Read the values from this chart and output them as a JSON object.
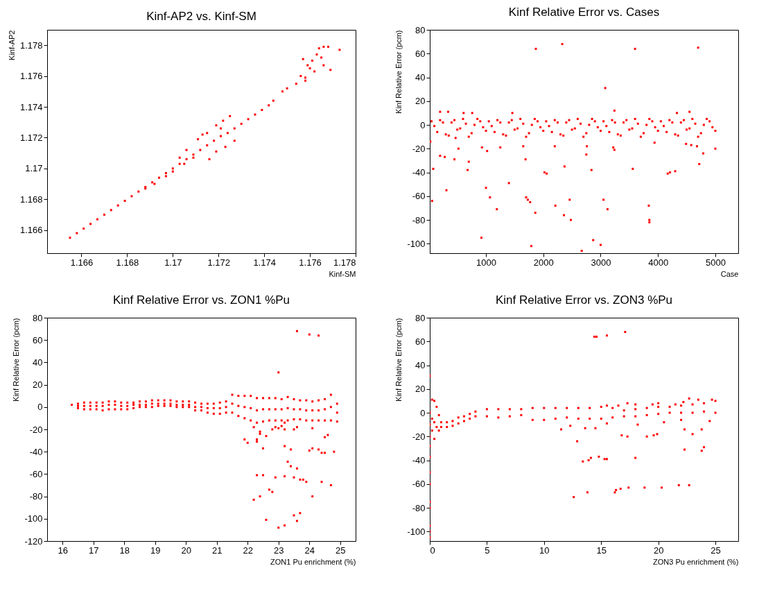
{
  "chart_data": [
    {
      "type": "scatter",
      "title": "Kinf-AP2 vs. Kinf-SM",
      "xlabel": "Kinf-SM",
      "ylabel": "Kinf-AP2",
      "marker": "square",
      "xlim": [
        1.1645,
        1.178
      ],
      "ylim": [
        1.1645,
        1.179
      ],
      "xticks": [
        1.166,
        1.168,
        1.17,
        1.172,
        1.174,
        1.176,
        1.178
      ],
      "yticks": [
        1.166,
        1.168,
        1.17,
        1.172,
        1.174,
        1.176,
        1.178
      ],
      "series": [
        {
          "color": "#ff0000",
          "x": [
            1.1655,
            1.1658,
            1.1661,
            1.1664,
            1.1667,
            1.167,
            1.1673,
            1.1676,
            1.1679,
            1.1682,
            1.1685,
            1.1688,
            1.1691,
            1.1694,
            1.1697,
            1.17,
            1.1703,
            1.1706,
            1.1709,
            1.1712,
            1.1715,
            1.1718,
            1.1721,
            1.1724,
            1.1727,
            1.173,
            1.1733,
            1.1736,
            1.1739,
            1.1742,
            1.1688,
            1.1692,
            1.1697,
            1.17,
            1.1705,
            1.1709,
            1.1711,
            1.1713,
            1.1715,
            1.1716,
            1.1719,
            1.1719,
            1.1721,
            1.1722,
            1.1723,
            1.1725,
            1.1727,
            1.1703,
            1.1706,
            1.1744,
            1.1748,
            1.175,
            1.1754,
            1.1756,
            1.1758,
            1.1759,
            1.1761,
            1.1763,
            1.176,
            1.1762,
            1.1764,
            1.1766,
            1.1768,
            1.1766,
            1.1769,
            1.1773,
            1.1757,
            1.1758,
            1.1765
          ],
          "values": [
            1.1655,
            1.1658,
            1.1661,
            1.1664,
            1.1667,
            1.167,
            1.1673,
            1.1676,
            1.1679,
            1.1682,
            1.1685,
            1.1688,
            1.1691,
            1.1694,
            1.1697,
            1.17,
            1.1703,
            1.1706,
            1.1709,
            1.1712,
            1.1715,
            1.1718,
            1.1721,
            1.1723,
            1.1726,
            1.1729,
            1.1732,
            1.1735,
            1.1738,
            1.1741,
            1.1687,
            1.169,
            1.1695,
            1.1698,
            1.1703,
            1.1707,
            1.1719,
            1.1722,
            1.1723,
            1.1706,
            1.1728,
            1.1711,
            1.1726,
            1.1731,
            1.1714,
            1.1734,
            1.1718,
            1.1707,
            1.1712,
            1.1744,
            1.175,
            1.1752,
            1.1755,
            1.176,
            1.1759,
            1.1767,
            1.177,
            1.1774,
            1.1765,
            1.1763,
            1.1778,
            1.1779,
            1.1779,
            1.1767,
            1.1764,
            1.1777,
            1.1771,
            1.1757,
            1.1772
          ]
        }
      ]
    },
    {
      "type": "scatter",
      "title": "Kinf Relative Error vs. Cases",
      "xlabel": "Case",
      "ylabel": "Kinf Relative Error (pcm)",
      "marker": "square",
      "xlim": [
        20,
        5400
      ],
      "ylim": [
        -108,
        80
      ],
      "xticks": [
        1000,
        2000,
        3000,
        4000,
        5000
      ],
      "yticks": [
        -100,
        -80,
        -60,
        -40,
        -20,
        0,
        20,
        40,
        60,
        80
      ],
      "series": [
        {
          "color": "#ff0000",
          "x": [
            50,
            150,
            250,
            350,
            450,
            550,
            650,
            750,
            850,
            950,
            1050,
            1150,
            1250,
            1350,
            1450,
            1550,
            1650,
            1750,
            1850,
            1950,
            2050,
            2150,
            2250,
            2350,
            2450,
            2550,
            2650,
            2750,
            2850,
            2950,
            3050,
            3150,
            3250,
            3350,
            3450,
            3550,
            3650,
            3750,
            3850,
            3950,
            4050,
            4150,
            4250,
            4350,
            4450,
            4550,
            4650,
            4750,
            4850,
            4950,
            100,
            200,
            300,
            400,
            500,
            600,
            700,
            800,
            900,
            1000,
            1100,
            1200,
            1300,
            1400,
            1500,
            1600,
            1700,
            1800,
            1900,
            2000,
            2100,
            2200,
            2300,
            2400,
            2500,
            2600,
            2700,
            2800,
            2900,
            3000,
            3100,
            3200,
            3300,
            3400,
            3500,
            3600,
            3700,
            3800,
            3900,
            4000,
            4100,
            4200,
            4300,
            4400,
            4500,
            4600,
            4700,
            4800,
            4900,
            5000,
            1870,
            2330,
            3600,
            4700,
            3080,
            30,
            80,
            60,
            200,
            280,
            310,
            450,
            520,
            680,
            700,
            930,
            920,
            1000,
            1020,
            1070,
            1190,
            1250,
            1400,
            1650,
            1690,
            1700,
            1730,
            1770,
            1790,
            1860,
            2020,
            2060,
            2200,
            2210,
            2360,
            2370,
            2460,
            2480,
            2670,
            2750,
            2760,
            2840,
            2870,
            3000,
            3050,
            3120,
            3220,
            3240,
            3560,
            3840,
            3850,
            3850,
            3940,
            4170,
            4210,
            4300,
            4490,
            4580,
            4680,
            4720,
            4790,
            5000,
            200,
            340,
            470,
            610,
            760,
            1460,
            3240,
            4330,
            4550
          ],
          "values": [
            3,
            -6,
            2,
            -9,
            4,
            -3,
            1,
            -7,
            5,
            -2,
            3,
            -6,
            2,
            -9,
            4,
            -3,
            1,
            -7,
            5,
            -2,
            3,
            -6,
            2,
            -9,
            4,
            -3,
            1,
            -7,
            5,
            -2,
            3,
            -6,
            2,
            -9,
            4,
            -3,
            1,
            -7,
            5,
            -2,
            3,
            -6,
            2,
            -9,
            4,
            -3,
            1,
            -7,
            5,
            -2,
            -1,
            4,
            -8,
            2,
            -4,
            5,
            -10,
            0,
            3,
            -5,
            -1,
            4,
            -8,
            2,
            -4,
            5,
            -10,
            0,
            3,
            -5,
            -1,
            4,
            -8,
            2,
            -4,
            5,
            -10,
            0,
            3,
            -5,
            -1,
            4,
            -8,
            2,
            -4,
            5,
            -10,
            0,
            3,
            -5,
            -1,
            4,
            -8,
            2,
            -4,
            5,
            -10,
            0,
            3,
            -5,
            64,
            68,
            64,
            65,
            31,
            -14,
            -37,
            -64,
            -26,
            -27,
            -55,
            -29,
            -20,
            -38,
            -31,
            -19,
            -95,
            -53,
            -22,
            -61,
            -71,
            -19,
            -49,
            -18,
            -29,
            -61,
            -63,
            -65,
            -102,
            -74,
            -40,
            -41,
            -18,
            -68,
            -76,
            -35,
            -63,
            -80,
            -106,
            -25,
            -18,
            -38,
            -97,
            -101,
            -63,
            -71,
            -19,
            -21,
            -37,
            -68,
            -80,
            -82,
            -15,
            -41,
            -40,
            -39,
            -16,
            -17,
            -18,
            -33,
            -24,
            -20,
            11,
            11,
            -11,
            10,
            10,
            10,
            12,
            10,
            11
          ]
        }
      ]
    },
    {
      "type": "scatter",
      "title": "Kinf Relative Error vs. ZON1 %Pu",
      "xlabel": "ZON1 Pu enrichment (%)",
      "ylabel": "Kinf Relative Error (pcm)",
      "marker": "square",
      "xlim": [
        15.5,
        25.5
      ],
      "ylim": [
        -120,
        80
      ],
      "xticks": [
        16,
        17,
        18,
        19,
        20,
        21,
        22,
        23,
        24,
        25
      ],
      "yticks": [
        -120,
        -100,
        -80,
        -60,
        -40,
        -20,
        0,
        20,
        40,
        60,
        80
      ],
      "series": [
        {
          "color": "#ff0000",
          "x": [
            16.3,
            16.5,
            16.5,
            16.5,
            16.7,
            16.7,
            16.7,
            16.9,
            16.9,
            16.9,
            17.1,
            17.1,
            17.1,
            17.3,
            17.3,
            17.3,
            17.5,
            17.5,
            17.5,
            17.7,
            17.7,
            17.7,
            17.9,
            17.9,
            17.9,
            18.1,
            18.1,
            18.1,
            18.3,
            18.3,
            18.3,
            18.5,
            18.5,
            18.5,
            18.7,
            18.7,
            18.7,
            18.9,
            18.9,
            18.9,
            19.1,
            19.1,
            19.1,
            19.3,
            19.3,
            19.3,
            19.5,
            19.5,
            19.5,
            19.7,
            19.7,
            19.7,
            19.9,
            19.9,
            19.9,
            20.1,
            20.1,
            20.1,
            20.3,
            20.3,
            20.3,
            20.5,
            20.5,
            20.5,
            20.7,
            20.7,
            20.7,
            20.9,
            20.9,
            20.9,
            21.1,
            21.1,
            21.1,
            21.3,
            21.3,
            21.3,
            21.5,
            21.5,
            21.5,
            21.7,
            21.7,
            21.7,
            21.9,
            21.9,
            21.9,
            22.1,
            22.1,
            22.1,
            22.3,
            22.3,
            22.3,
            22.5,
            22.5,
            22.5,
            22.7,
            22.7,
            22.7,
            22.9,
            22.9,
            22.9,
            23.1,
            23.1,
            23.1,
            23.3,
            23.3,
            23.3,
            23.5,
            23.5,
            23.5,
            23.7,
            23.7,
            23.7,
            23.9,
            23.9,
            23.9,
            24.1,
            24.1,
            24.1,
            24.3,
            24.3,
            24.3,
            24.5,
            24.5,
            24.5,
            24.7,
            24.7,
            24.7,
            24.9,
            24.9,
            24.9,
            23.6,
            24.0,
            24.3,
            23.0,
            22.2,
            21.9,
            22.0,
            22.3,
            22.3,
            22.4,
            22.4,
            22.6,
            22.5,
            22.8,
            22.9,
            23.0,
            23.1,
            23.2,
            23.2,
            23.5,
            23.6,
            24.1,
            24.0,
            24.1,
            24.3,
            24.4,
            24.5,
            24.5,
            24.6,
            24.8,
            23.2,
            23.4,
            23.3,
            23.4,
            23.6,
            22.3,
            22.5,
            22.9,
            23.2,
            23.5,
            23.7,
            23.8,
            23.9,
            24.4,
            24.7,
            22.2,
            22.4,
            22.7,
            22.8,
            24.1,
            22.6,
            23.0,
            23.2,
            23.5,
            23.6,
            23.7
          ],
          "values": [
            2,
            -1,
            1,
            3,
            -2,
            1,
            4,
            -2,
            1,
            4,
            -2,
            1,
            4,
            -3,
            1,
            4,
            -2,
            2,
            5,
            -2,
            2,
            5,
            -2,
            1,
            4,
            -2,
            1,
            4,
            -1,
            2,
            4,
            0,
            2,
            5,
            0,
            2,
            5,
            0,
            3,
            6,
            1,
            3,
            6,
            1,
            3,
            6,
            1,
            3,
            6,
            0,
            2,
            5,
            0,
            2,
            5,
            0,
            2,
            5,
            -3,
            0,
            4,
            -3,
            0,
            3,
            -5,
            -1,
            3,
            -6,
            -1,
            3,
            -6,
            -1,
            4,
            -5,
            0,
            5,
            -5,
            3,
            11,
            -8,
            1,
            10,
            -10,
            0,
            10,
            -12,
            -1,
            10,
            -14,
            -3,
            8,
            -13,
            -2,
            8,
            -12,
            -2,
            8,
            -12,
            -2,
            8,
            -12,
            -2,
            7,
            -12,
            -1,
            9,
            -11,
            -2,
            7,
            -11,
            -2,
            6,
            -12,
            -3,
            6,
            -12,
            -3,
            5,
            -12,
            -3,
            6,
            -12,
            -2,
            7,
            -12,
            0,
            11,
            -13,
            -5,
            3,
            68,
            65,
            64,
            31,
            -18,
            -29,
            -32,
            -29,
            -31,
            -22,
            -24,
            -26,
            -37,
            -20,
            -18,
            -19,
            -17,
            -14,
            -20,
            -20,
            -18,
            -19,
            -39,
            -37,
            -38,
            -41,
            -41,
            -27,
            -25,
            -40,
            -35,
            -38,
            -49,
            -53,
            -55,
            -61,
            -61,
            -63,
            -62,
            -63,
            -65,
            -65,
            -67,
            -67,
            -70,
            -83,
            -80,
            -74,
            -76,
            -80,
            -101,
            -108,
            -106,
            -97,
            -102,
            -95
          ]
        }
      ]
    },
    {
      "type": "scatter",
      "title": "Kinf Relative Error vs. ZON3 %Pu",
      "xlabel": "ZON3 Pu enrichment (%)",
      "ylabel": "Kinf Relative Error (pcm)",
      "marker": "square",
      "xlim": [
        0,
        27
      ],
      "ylim": [
        -108,
        80
      ],
      "xticks": [
        0,
        5,
        10,
        15,
        20,
        25
      ],
      "yticks": [
        -100,
        -80,
        -60,
        -40,
        -20,
        0,
        20,
        40,
        60,
        80
      ],
      "series": [
        {
          "color": "#ff0000",
          "x": [
            0,
            0,
            0,
            0,
            0,
            0,
            0,
            0,
            0,
            0,
            0,
            0,
            0,
            0.2,
            0.2,
            0.2,
            0.4,
            0.4,
            0.4,
            0.6,
            0.6,
            0.8,
            0.8,
            1,
            1,
            1.5,
            1.5,
            2,
            2,
            2.5,
            2.5,
            3,
            3,
            3.5,
            3.5,
            4,
            4,
            5,
            5,
            6,
            6,
            7,
            7,
            8,
            8,
            9,
            9,
            10,
            10,
            11,
            11,
            12,
            12,
            13,
            13,
            14,
            14,
            15,
            15,
            16,
            16,
            17,
            17,
            18,
            18,
            19,
            19,
            20,
            20,
            21,
            21,
            22,
            22,
            23,
            23,
            24,
            24,
            25,
            25,
            15.5,
            16.5,
            17.3,
            18,
            19.5,
            20,
            21.5,
            22.2,
            22.7,
            23.5,
            24.7,
            14.4,
            14.6,
            15.5,
            17.1,
            11.5,
            12.3,
            13.6,
            14.5,
            15.5,
            16.8,
            17.3,
            18.2,
            19,
            19.6,
            19.9,
            20.5,
            22,
            22.3,
            23,
            23.8,
            24.5,
            12.9,
            13.4,
            13.9,
            14.1,
            14.8,
            15.3,
            15.5,
            18,
            22.3,
            23.8,
            24,
            12.6,
            13.8,
            16.2,
            16.3,
            16.7,
            17.4,
            18.8,
            20.3,
            21.8,
            22.7
          ],
          "values": [
            -105,
            -100,
            -95,
            -80,
            -75,
            -60,
            -50,
            -37,
            -28,
            -20,
            -10,
            0,
            31,
            11,
            -5,
            -15,
            10,
            -8,
            -22,
            5,
            -12,
            -2,
            -15,
            -8,
            -12,
            -8,
            -12,
            -7,
            -11,
            -4,
            -9,
            -3,
            -7,
            -1,
            -5,
            1,
            -3,
            3,
            -3,
            3,
            -4,
            3,
            -3,
            3,
            -2,
            4,
            -6,
            4,
            -6,
            4,
            -5,
            4,
            -4,
            4,
            -5,
            4,
            -5,
            5,
            -5,
            4,
            -4,
            2,
            -3,
            3,
            -3,
            4,
            -2,
            5,
            -1,
            5,
            0,
            6,
            0,
            7,
            0,
            8,
            1,
            10,
            0,
            6,
            6,
            8,
            7,
            7,
            8,
            7,
            9,
            12,
            11,
            11,
            64,
            64,
            65,
            68,
            -14,
            -11,
            -13,
            -13,
            -9,
            -19,
            -20,
            -10,
            -20,
            -19,
            -18,
            -8,
            -6,
            -14,
            -18,
            -14,
            -7,
            -24,
            -41,
            -40,
            -38,
            -37,
            -39,
            -39,
            -38,
            -31,
            -32,
            -29,
            -71,
            -67,
            -67,
            -65,
            -64,
            -63,
            -63,
            -63,
            -61,
            -61
          ]
        }
      ]
    }
  ]
}
